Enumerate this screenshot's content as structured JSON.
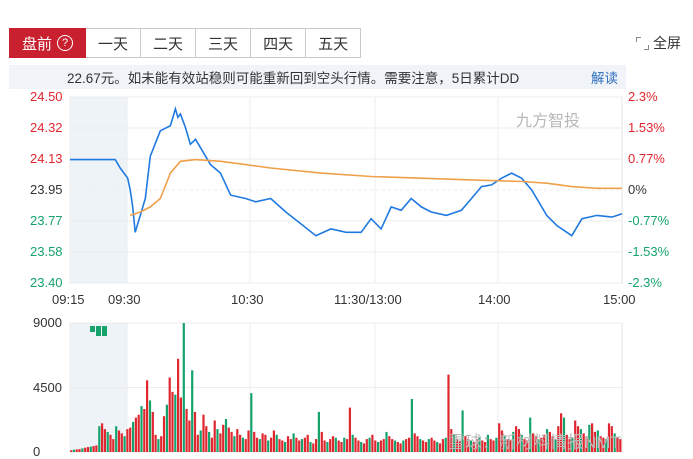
{
  "tabs": [
    {
      "label": "盘前",
      "active": true,
      "help": "?"
    },
    {
      "label": "一天"
    },
    {
      "label": "二天"
    },
    {
      "label": "三天"
    },
    {
      "label": "四天"
    },
    {
      "label": "五天"
    }
  ],
  "fullscreen_label": "全屏",
  "notice": {
    "text": "22.67元。如未能有效站稳则可能重新回到空头行情。需要注意，5日累计DD",
    "link": "解读"
  },
  "watermark": "九方智投",
  "footer_watermark": "雪球：新材料情报NMT",
  "colors": {
    "up": "#e0262f",
    "down": "#15a36b",
    "price_line": "#1f7ae0",
    "avg_line": "#f0a04b",
    "premarket_bg": "#eef3f8"
  },
  "chart_data": [
    {
      "type": "line",
      "y_left_ticks": [
        "24.50",
        "24.32",
        "24.13",
        "23.95",
        "23.77",
        "23.58",
        "23.40"
      ],
      "y_right_ticks": [
        "2.3%",
        "1.53%",
        "0.77%",
        "0%",
        "-0.77%",
        "-1.53%",
        "-2.3%"
      ],
      "x_ticks": [
        "09:15",
        "09:30",
        "10:30",
        "11:30/13:00",
        "14:00",
        "15:00"
      ],
      "ylim": [
        23.4,
        24.5
      ],
      "prev_close": 23.95,
      "series": [
        {
          "role": "price",
          "x": [
            0,
            0.05,
            0.09,
            0.1,
            0.115,
            0.12,
            0.125,
            0.13,
            0.14,
            0.15,
            0.16,
            0.18,
            0.2,
            0.21,
            0.215,
            0.22,
            0.225,
            0.23,
            0.24,
            0.25,
            0.26,
            0.27,
            0.28,
            0.3,
            0.32,
            0.35,
            0.37,
            0.4,
            0.43,
            0.46,
            0.49,
            0.52,
            0.55,
            0.58,
            0.6,
            0.62,
            0.64,
            0.66,
            0.68,
            0.7,
            0.72,
            0.75,
            0.78,
            0.8,
            0.82,
            0.84,
            0.86,
            0.88,
            0.9,
            0.92,
            0.95,
            0.97,
            1.0,
            1.02,
            1.05,
            1.08,
            1.1
          ],
          "y": [
            24.13,
            24.13,
            24.13,
            24.08,
            24.02,
            23.95,
            23.85,
            23.7,
            23.8,
            23.9,
            24.15,
            24.3,
            24.33,
            24.43,
            24.38,
            24.4,
            24.36,
            24.32,
            24.22,
            24.25,
            24.2,
            24.15,
            24.1,
            24.05,
            23.92,
            23.9,
            23.88,
            23.9,
            23.82,
            23.75,
            23.68,
            23.72,
            23.7,
            23.7,
            23.78,
            23.72,
            23.85,
            23.83,
            23.9,
            23.85,
            23.82,
            23.8,
            23.83,
            23.9,
            23.97,
            23.98,
            24.02,
            24.05,
            24.02,
            23.95,
            23.8,
            23.74,
            23.68,
            23.78,
            23.8,
            23.79,
            23.81
          ]
        },
        {
          "role": "average",
          "x": [
            0.12,
            0.14,
            0.16,
            0.18,
            0.2,
            0.22,
            0.25,
            0.3,
            0.35,
            0.4,
            0.5,
            0.6,
            0.7,
            0.8,
            0.9,
            0.95,
            1.0,
            1.05,
            1.1
          ],
          "y": [
            23.8,
            23.82,
            23.85,
            23.9,
            24.05,
            24.12,
            24.13,
            24.12,
            24.1,
            24.08,
            24.05,
            24.03,
            24.02,
            24.01,
            24.0,
            23.99,
            23.97,
            23.96,
            23.96
          ]
        }
      ]
    },
    {
      "type": "bar",
      "y_ticks": [
        "9000",
        "4500",
        "0"
      ],
      "ylim": [
        0,
        9000
      ],
      "values": [
        120,
        160,
        180,
        200,
        260,
        300,
        340,
        380,
        420,
        460,
        1800,
        2000,
        1600,
        1400,
        1200,
        900,
        1800,
        1500,
        1300,
        1100,
        1600,
        1700,
        2100,
        2400,
        2600,
        3200,
        3000,
        5000,
        3600,
        2800,
        1200,
        900,
        1100,
        2500,
        3300,
        5200,
        4200,
        4000,
        6500,
        3800,
        9000,
        3000,
        2200,
        5700,
        2800,
        1200,
        1500,
        2600,
        1800,
        1400,
        1000,
        2200,
        1600,
        1300,
        1900,
        2300,
        1700,
        1400,
        1100,
        1600,
        1200,
        1000,
        900,
        1500,
        4100,
        1400,
        1000,
        900,
        1300,
        1200,
        800,
        1000,
        1500,
        1200,
        900,
        800,
        700,
        1100,
        900,
        1300,
        1000,
        800,
        900,
        1000,
        1200,
        700,
        600,
        900,
        2800,
        1400,
        800,
        700,
        900,
        1100,
        1000,
        800,
        700,
        1000,
        900,
        3100,
        1200,
        1000,
        800,
        700,
        600,
        900,
        1000,
        1200,
        800,
        700,
        800,
        900,
        1400,
        1100,
        900,
        800,
        700,
        600,
        800,
        900,
        1000,
        3700,
        1300,
        1100,
        900,
        800,
        700,
        900,
        1000,
        800,
        700,
        600,
        900,
        1000,
        5400,
        1600,
        1200,
        900,
        800,
        2900,
        1100,
        900,
        800,
        700,
        900,
        1000,
        800,
        700,
        1200,
        900,
        800,
        1000,
        2000,
        1500,
        1100,
        900,
        800,
        1400,
        1800,
        1600,
        1200,
        900,
        800,
        2400,
        1300,
        1100,
        900,
        1000,
        1200,
        1600,
        1400,
        1100,
        900,
        1800,
        2700,
        2400,
        1200,
        900,
        1000,
        2200,
        1800,
        1600,
        1300,
        1100,
        1900,
        2000,
        1400,
        1500,
        1100,
        1000,
        900,
        2000,
        1800,
        1300,
        1000,
        900
      ],
      "colors": [
        "down",
        "up"
      ]
    }
  ]
}
